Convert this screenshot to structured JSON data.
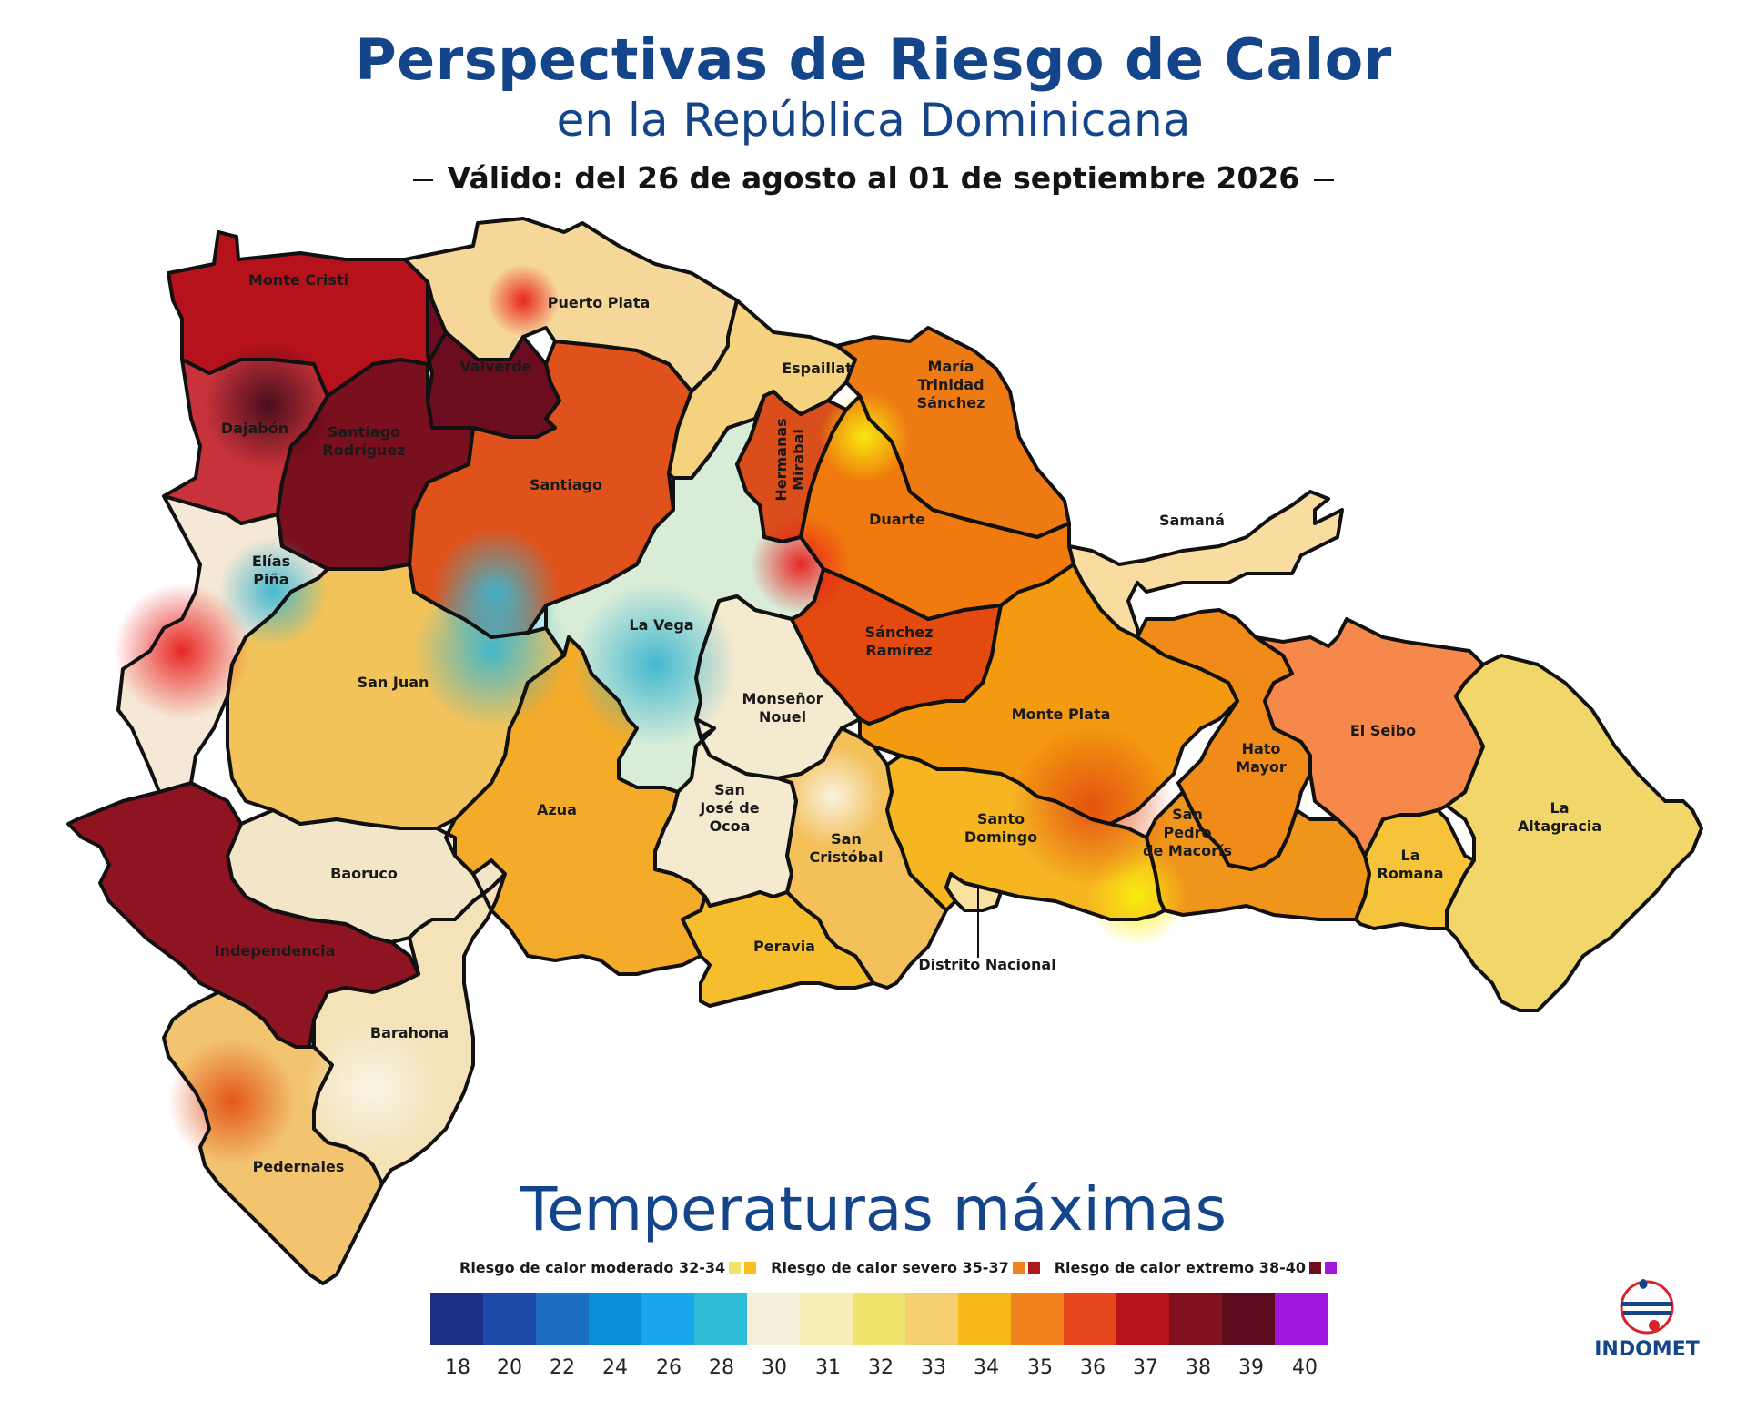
{
  "header": {
    "title": "Perspectivas de Riesgo de Calor",
    "subtitle": "en la República Dominicana",
    "valid": "Válido: del 26 de agosto al 01 de septiembre 2026"
  },
  "provinces": [
    {
      "name": "Monte Cristi",
      "color": "#b5121b"
    },
    {
      "name": "Puerto Plata",
      "color": "#f6d79a"
    },
    {
      "name": "Valverde",
      "color": "#6b0d1f"
    },
    {
      "name": "Dajabón",
      "color": "#c8323a"
    },
    {
      "name": "Santiago Rodríguez",
      "color": "#7a0f1d"
    },
    {
      "name": "Santiago",
      "color": "#e0521c"
    },
    {
      "name": "Espaillat",
      "color": "#f5d27e"
    },
    {
      "name": "Hermanas Mirabal",
      "color": "#d94e1a"
    },
    {
      "name": "María Trinidad Sánchez",
      "color": "#ee7a14"
    },
    {
      "name": "Duarte",
      "color": "#f07a0d"
    },
    {
      "name": "Samaná",
      "color": "#f8dca0"
    },
    {
      "name": "Elías Piña",
      "color": "#f6e8d6"
    },
    {
      "name": "La Vega",
      "color": "#d8ecd8"
    },
    {
      "name": "Sánchez Ramírez",
      "color": "#e24a10"
    },
    {
      "name": "San Juan",
      "color": "#f2c35a"
    },
    {
      "name": "Monseñor Nouel",
      "color": "#f4ead0"
    },
    {
      "name": "Monte Plata",
      "color": "#f49a10"
    },
    {
      "name": "Hato Mayor",
      "color": "#f08a18"
    },
    {
      "name": "El Seibo",
      "color": "#f5884a"
    },
    {
      "name": "La Altagracia",
      "color": "#f1d66a"
    },
    {
      "name": "Azua",
      "color": "#f5ab2a"
    },
    {
      "name": "San José de Ocoa",
      "color": "#f4ead0"
    },
    {
      "name": "San Cristóbal",
      "color": "#f3c05a"
    },
    {
      "name": "Santo Domingo",
      "color": "#f6b622"
    },
    {
      "name": "Distrito Nacional",
      "color": "#f9e2a0"
    },
    {
      "name": "San Pedro de Macorís",
      "color": "#f0951c"
    },
    {
      "name": "La Romana",
      "color": "#f5c43a"
    },
    {
      "name": "Baoruco",
      "color": "#f3e6c8"
    },
    {
      "name": "Independencia",
      "color": "#8e1421"
    },
    {
      "name": "Barahona",
      "color": "#f4e3b8"
    },
    {
      "name": "Peravia",
      "color": "#f5be2e"
    },
    {
      "name": "Pedernales",
      "color": "#f2c470"
    }
  ],
  "legend": {
    "title": "Temperaturas máximas",
    "risk": [
      {
        "label": "Riesgo de calor moderado 32-34",
        "colors": [
          "#f3e26a",
          "#f6bf1a"
        ]
      },
      {
        "label": "Riesgo de calor severo 35-37",
        "colors": [
          "#f2821e",
          "#b01a1f"
        ]
      },
      {
        "label": "Riesgo de calor extremo  38-40",
        "colors": [
          "#6e0f1e",
          "#a018e0"
        ]
      }
    ],
    "scale_colors": [
      "#1b2f87",
      "#1d4aa8",
      "#1b6ec4",
      "#0d8ed8",
      "#1aa7ec",
      "#2fbcd6",
      "#f6efd9",
      "#f7f0b6",
      "#efe36c",
      "#f4cf6e",
      "#f7b81a",
      "#f2821e",
      "#e6461c",
      "#b5121b",
      "#82101d",
      "#5e0b1e",
      "#a018e0"
    ],
    "ticks": [
      "18",
      "20",
      "22",
      "24",
      "26",
      "28",
      "30",
      "31",
      "32",
      "33",
      "34",
      "35",
      "36",
      "37",
      "38",
      "39",
      "40"
    ]
  },
  "logo": {
    "text": "INDOMET"
  }
}
